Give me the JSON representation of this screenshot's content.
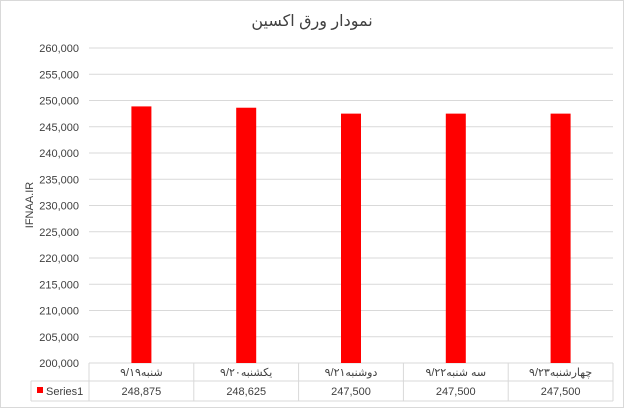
{
  "chart_data": {
    "type": "bar",
    "title": "نمودار ورق اکسین",
    "ylabel": "IFNAA.IR",
    "xlabel": "",
    "categories": [
      "شنبه۹/۱۹",
      "یکشنبه۹/۲۰",
      "دوشنبه۹/۲۱",
      "سه شنبه۹/۲۲",
      "چهارشنبه۹/۲۳"
    ],
    "series": [
      {
        "name": "Series1",
        "values": [
          248875,
          248625,
          247500,
          247500,
          247500
        ],
        "color": "#ff0000"
      }
    ],
    "value_labels": [
      "248,875",
      "248,625",
      "247,500",
      "247,500",
      "247,500"
    ],
    "ylim": [
      200000,
      260000
    ],
    "ytick_step": 5000,
    "ytick_labels": [
      "200,000",
      "205,000",
      "210,000",
      "215,000",
      "220,000",
      "225,000",
      "230,000",
      "235,000",
      "240,000",
      "245,000",
      "250,000",
      "255,000",
      "260,000"
    ],
    "grid": true,
    "legend": "data-table"
  }
}
